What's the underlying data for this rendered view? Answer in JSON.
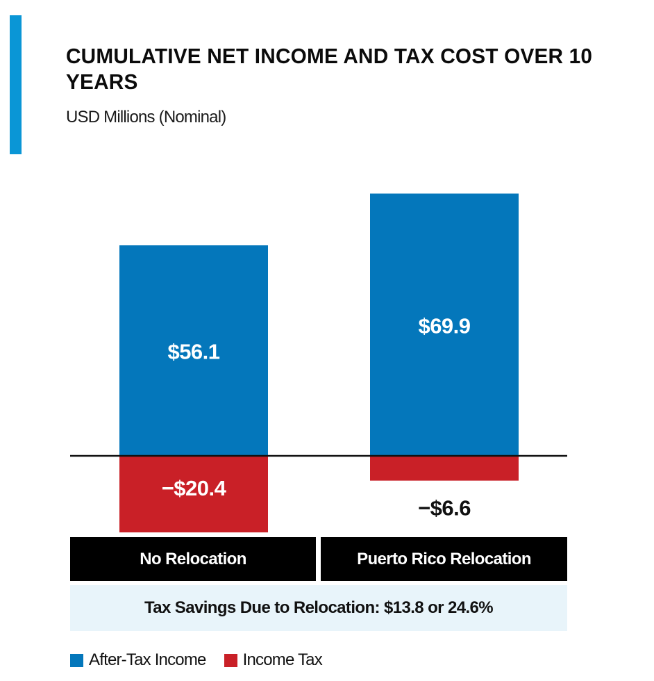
{
  "header": {
    "title": "Cumulative Net Income and Tax Cost over 10 Years",
    "subtitle": "USD Millions (Nominal)"
  },
  "colors": {
    "accent": "#0a96d6",
    "after_tax_income": "#0477bb",
    "income_tax": "#c92027",
    "category_box": "#000000",
    "savings_background": "#e8f4fa"
  },
  "chart_data": {
    "type": "bar",
    "stacked": true,
    "title": "Cumulative Net Income and Tax Cost over 10 Years",
    "subtitle": "USD Millions (Nominal)",
    "xlabel": "",
    "ylabel": "",
    "categories": [
      "No Relocation",
      "Puerto Rico Relocation"
    ],
    "series": [
      {
        "name": "After-Tax Income",
        "values": [
          56.1,
          69.9
        ],
        "labels": [
          "$56.1",
          "$69.9"
        ]
      },
      {
        "name": "Income Tax",
        "values": [
          -20.4,
          -6.6
        ],
        "labels": [
          "−$20.4",
          "−$6.6"
        ]
      }
    ],
    "ylim": [
      -20.4,
      69.9
    ],
    "grid": false,
    "baseline": 0,
    "legend": "bottom-left",
    "annotation": "Tax Savings Due to Relocation: $13.8 or 24.6%"
  },
  "legend": {
    "items": [
      {
        "label": "After-Tax Income"
      },
      {
        "label": "Income Tax"
      }
    ]
  }
}
